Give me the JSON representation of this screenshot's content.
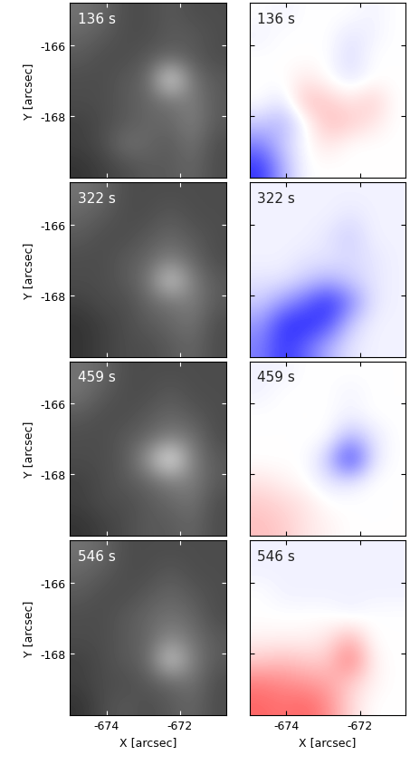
{
  "chart_data": [
    {
      "type": "heatmap",
      "annotation": "136 s",
      "color": "gray",
      "color_range": [
        0,
        1
      ],
      "xlim": [
        -675.0,
        -670.75
      ],
      "ylim": [
        -169.75,
        -164.8
      ],
      "xticks": [
        -674,
        -672
      ],
      "yticks": [
        -166,
        -168
      ],
      "y_label": "Y [arcsec]",
      "tick_labels": "y",
      "cells": [
        [
          0.45,
          0.4,
          0.3,
          0.3,
          0.35,
          0.3,
          0.3
        ],
        [
          0.4,
          0.35,
          0.3,
          0.3,
          0.35,
          0.35,
          0.3
        ],
        [
          0.35,
          0.3,
          0.3,
          0.35,
          0.4,
          0.35,
          0.3
        ],
        [
          0.3,
          0.3,
          0.35,
          0.4,
          0.95,
          0.45,
          0.35
        ],
        [
          0.3,
          0.3,
          0.35,
          0.4,
          0.45,
          0.5,
          0.35
        ],
        [
          0.25,
          0.3,
          0.35,
          0.4,
          0.4,
          0.5,
          0.35
        ],
        [
          0.25,
          0.3,
          0.45,
          0.4,
          0.35,
          0.45,
          0.3
        ],
        [
          0.2,
          0.25,
          0.3,
          0.35,
          0.35,
          0.4,
          0.3
        ]
      ]
    },
    {
      "type": "heatmap",
      "annotation": "136 s",
      "color": "bwr",
      "color_range": [
        -1,
        1
      ],
      "xlim": [
        -675.0,
        -670.75
      ],
      "ylim": [
        -169.75,
        -164.8
      ],
      "xticks": [
        -674,
        -672
      ],
      "yticks": [
        -166,
        -168
      ],
      "tick_labels": false,
      "cells": [
        [
          0.0,
          -0.05,
          0.0,
          0.0,
          0.0,
          -0.05,
          0.0
        ],
        [
          -0.05,
          0.0,
          0.0,
          0.0,
          -0.1,
          -0.05,
          0.0
        ],
        [
          0.0,
          0.0,
          0.0,
          0.0,
          -0.15,
          0.0,
          0.0
        ],
        [
          0.0,
          0.0,
          0.1,
          0.0,
          -0.1,
          0.0,
          0.0
        ],
        [
          0.0,
          -0.1,
          0.25,
          0.2,
          0.1,
          0.2,
          0.0
        ],
        [
          -0.2,
          -0.3,
          0.0,
          0.25,
          0.2,
          0.1,
          0.0
        ],
        [
          -0.5,
          -0.2,
          0.0,
          0.1,
          0.0,
          0.0,
          0.0
        ],
        [
          -0.8,
          -0.3,
          0.0,
          0.0,
          0.0,
          0.0,
          0.0
        ]
      ]
    },
    {
      "type": "heatmap",
      "annotation": "322 s",
      "color": "gray",
      "color_range": [
        0,
        1
      ],
      "xlim": [
        -675.0,
        -670.75
      ],
      "ylim": [
        -169.75,
        -164.8
      ],
      "xticks": [
        -674,
        -672
      ],
      "yticks": [
        -166,
        -168
      ],
      "y_label": "Y [arcsec]",
      "tick_labels": "y",
      "cells": [
        [
          0.45,
          0.4,
          0.3,
          0.3,
          0.3,
          0.3,
          0.3
        ],
        [
          0.4,
          0.35,
          0.3,
          0.3,
          0.35,
          0.3,
          0.3
        ],
        [
          0.35,
          0.3,
          0.3,
          0.35,
          0.4,
          0.35,
          0.3
        ],
        [
          0.3,
          0.3,
          0.35,
          0.4,
          0.5,
          0.4,
          0.3
        ],
        [
          0.3,
          0.3,
          0.35,
          0.45,
          0.85,
          0.5,
          0.35
        ],
        [
          0.25,
          0.3,
          0.3,
          0.4,
          0.45,
          0.5,
          0.35
        ],
        [
          0.2,
          0.25,
          0.3,
          0.35,
          0.4,
          0.45,
          0.3
        ],
        [
          0.2,
          0.25,
          0.3,
          0.3,
          0.35,
          0.4,
          0.3
        ]
      ]
    },
    {
      "type": "heatmap",
      "annotation": "322 s",
      "color": "bwr",
      "color_range": [
        -1,
        1
      ],
      "xlim": [
        -675.0,
        -670.75
      ],
      "ylim": [
        -169.75,
        -164.8
      ],
      "xticks": [
        -674,
        -672
      ],
      "yticks": [
        -166,
        -168
      ],
      "tick_labels": false,
      "cells": [
        [
          -0.05,
          -0.05,
          -0.05,
          -0.05,
          -0.05,
          -0.05,
          -0.05
        ],
        [
          -0.05,
          -0.05,
          -0.05,
          -0.05,
          -0.1,
          -0.05,
          -0.05
        ],
        [
          -0.05,
          -0.05,
          -0.05,
          -0.1,
          -0.2,
          -0.05,
          -0.05
        ],
        [
          -0.05,
          -0.05,
          -0.1,
          -0.1,
          -0.15,
          -0.1,
          -0.05
        ],
        [
          -0.1,
          -0.1,
          -0.2,
          -0.3,
          -0.2,
          -0.1,
          -0.05
        ],
        [
          -0.2,
          -0.4,
          -0.6,
          -0.85,
          -0.5,
          -0.1,
          -0.05
        ],
        [
          -0.4,
          -0.8,
          -0.85,
          -0.7,
          -0.2,
          -0.05,
          -0.05
        ],
        [
          -0.5,
          -0.8,
          -0.6,
          -0.3,
          -0.1,
          -0.05,
          -0.05
        ]
      ]
    },
    {
      "type": "heatmap",
      "annotation": "459 s",
      "color": "gray",
      "color_range": [
        0,
        1
      ],
      "xlim": [
        -675.0,
        -670.75
      ],
      "ylim": [
        -169.75,
        -164.8
      ],
      "xticks": [
        -674,
        -672
      ],
      "yticks": [
        -166,
        -168
      ],
      "y_label": "Y [arcsec]",
      "tick_labels": "y",
      "cells": [
        [
          0.45,
          0.4,
          0.3,
          0.3,
          0.3,
          0.3,
          0.3
        ],
        [
          0.45,
          0.35,
          0.3,
          0.3,
          0.35,
          0.3,
          0.3
        ],
        [
          0.35,
          0.3,
          0.3,
          0.35,
          0.4,
          0.35,
          0.3
        ],
        [
          0.3,
          0.3,
          0.35,
          0.4,
          0.5,
          0.45,
          0.3
        ],
        [
          0.3,
          0.3,
          0.35,
          0.6,
          1.0,
          0.5,
          0.35
        ],
        [
          0.25,
          0.3,
          0.35,
          0.4,
          0.5,
          0.5,
          0.35
        ],
        [
          0.25,
          0.3,
          0.3,
          0.35,
          0.4,
          0.45,
          0.3
        ],
        [
          0.2,
          0.25,
          0.3,
          0.35,
          0.35,
          0.4,
          0.3
        ]
      ]
    },
    {
      "type": "heatmap",
      "annotation": "459 s",
      "color": "bwr",
      "color_range": [
        -1,
        1
      ],
      "xlim": [
        -675.0,
        -670.75
      ],
      "ylim": [
        -169.75,
        -164.8
      ],
      "xticks": [
        -674,
        -672
      ],
      "yticks": [
        -166,
        -168
      ],
      "tick_labels": false,
      "cells": [
        [
          -0.05,
          -0.05,
          0.0,
          0.0,
          0.0,
          0.0,
          0.0
        ],
        [
          -0.05,
          0.0,
          0.0,
          0.0,
          -0.05,
          0.0,
          0.0
        ],
        [
          0.0,
          0.0,
          0.0,
          0.0,
          -0.05,
          0.0,
          0.0
        ],
        [
          0.0,
          0.0,
          0.0,
          0.0,
          -0.3,
          -0.1,
          0.0
        ],
        [
          0.0,
          0.0,
          0.0,
          -0.2,
          -0.85,
          -0.1,
          0.0
        ],
        [
          0.1,
          0.05,
          0.0,
          -0.1,
          -0.1,
          0.0,
          0.0
        ],
        [
          0.2,
          0.15,
          0.1,
          0.0,
          0.0,
          0.0,
          0.0
        ],
        [
          0.25,
          0.2,
          0.1,
          0.05,
          0.0,
          0.0,
          0.0
        ]
      ]
    },
    {
      "type": "heatmap",
      "annotation": "546 s",
      "color": "gray",
      "color_range": [
        0,
        1
      ],
      "xlim": [
        -675.0,
        -670.75
      ],
      "ylim": [
        -169.75,
        -164.8
      ],
      "xticks": [
        -674,
        -672
      ],
      "yticks": [
        -166,
        -168
      ],
      "x_label": "X [arcsec]",
      "y_label": "Y [arcsec]",
      "cells": [
        [
          0.45,
          0.4,
          0.3,
          0.3,
          0.3,
          0.3,
          0.3
        ],
        [
          0.4,
          0.35,
          0.3,
          0.3,
          0.35,
          0.3,
          0.3
        ],
        [
          0.35,
          0.3,
          0.3,
          0.35,
          0.4,
          0.35,
          0.3
        ],
        [
          0.3,
          0.3,
          0.35,
          0.4,
          0.45,
          0.4,
          0.3
        ],
        [
          0.3,
          0.3,
          0.35,
          0.4,
          0.55,
          0.45,
          0.35
        ],
        [
          0.25,
          0.3,
          0.35,
          0.4,
          0.85,
          0.5,
          0.35
        ],
        [
          0.25,
          0.3,
          0.3,
          0.35,
          0.4,
          0.45,
          0.3
        ],
        [
          0.2,
          0.3,
          0.35,
          0.3,
          0.35,
          0.4,
          0.3
        ]
      ]
    },
    {
      "type": "heatmap",
      "annotation": "546 s",
      "color": "bwr",
      "color_range": [
        -1,
        1
      ],
      "xlim": [
        -675.0,
        -670.75
      ],
      "ylim": [
        -169.75,
        -164.8
      ],
      "xticks": [
        -674,
        -672
      ],
      "yticks": [
        -166,
        -168
      ],
      "x_label": "X [arcsec]",
      "tick_labels": "x",
      "cells": [
        [
          -0.05,
          -0.05,
          -0.05,
          -0.05,
          -0.05,
          -0.05,
          -0.05
        ],
        [
          -0.05,
          -0.05,
          -0.05,
          -0.05,
          -0.05,
          -0.05,
          -0.05
        ],
        [
          0.0,
          -0.05,
          -0.05,
          -0.05,
          -0.05,
          -0.05,
          -0.05
        ],
        [
          0.0,
          0.0,
          0.0,
          0.0,
          -0.05,
          0.0,
          0.0
        ],
        [
          0.05,
          0.05,
          0.05,
          0.1,
          0.3,
          0.0,
          0.0
        ],
        [
          0.2,
          0.25,
          0.2,
          0.2,
          0.55,
          0.05,
          0.0
        ],
        [
          0.5,
          0.45,
          0.4,
          0.35,
          0.2,
          0.05,
          0.0
        ],
        [
          0.6,
          0.55,
          0.6,
          0.45,
          0.15,
          0.0,
          0.0
        ]
      ]
    }
  ]
}
